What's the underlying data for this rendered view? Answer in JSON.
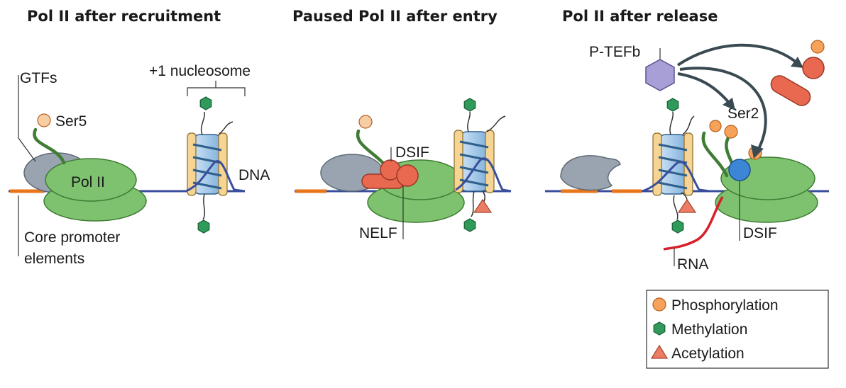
{
  "panels": {
    "recruitment": {
      "title": "Pol II after recruitment",
      "gtfs": "GTFs",
      "ser5": "Ser5",
      "pol2": "Pol II",
      "nucleosome": "+1 nucleosome",
      "dna": "DNA",
      "core_line1": "Core promoter",
      "core_line2": "elements"
    },
    "paused": {
      "title": "Paused Pol II after entry",
      "dsif": "DSIF",
      "nelf": "NELF"
    },
    "release": {
      "title": "Pol II after release",
      "ptefb": "P-TEFb",
      "ser2": "Ser2",
      "dsif": "DSIF",
      "rna": "RNA"
    }
  },
  "legend": {
    "items": [
      {
        "label": "Phosphorylation",
        "icon": "circle",
        "color": "#f7a25a"
      },
      {
        "label": "Methylation",
        "icon": "hexagon",
        "color": "#2f9a5a"
      },
      {
        "label": "Acetylation",
        "icon": "triangle",
        "color": "#ea7d63"
      }
    ]
  },
  "colors": {
    "pol2": "#7ec26f",
    "dna": "#3a4e9c",
    "promoter": "#e8751a",
    "gtf": "#9aa4b0",
    "nelf": "#e96950",
    "dsif_released": "#3d86d6",
    "rna": "#d8202a",
    "ptefb": "#a79fd6"
  }
}
